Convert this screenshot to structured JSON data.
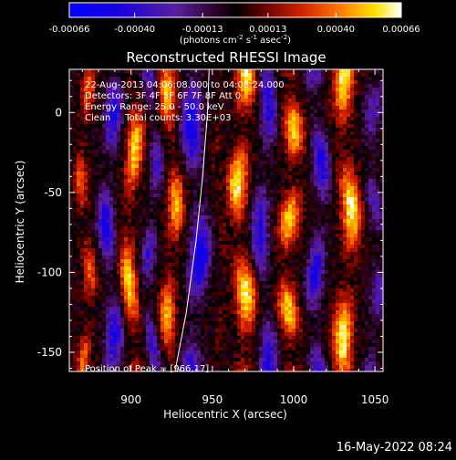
{
  "colorbar": {
    "tick_labels": [
      "-0.00066",
      "-0.00040",
      "-0.00013",
      "0.00013",
      "0.00040",
      "0.00066"
    ],
    "tick_values": [
      -0.00066,
      -0.0004,
      -0.00013,
      0.00013,
      0.0004,
      0.00066
    ],
    "range": [
      -0.00066,
      0.00066
    ],
    "unit_main": "(photons cm",
    "unit_sup1": "-2",
    "unit_mid": " s",
    "unit_sup2": "-1",
    "unit_mid2": " asec",
    "unit_sup3": "-2",
    "unit_close": ")"
  },
  "footer": {
    "timestamp": "16-May-2022 08:24"
  },
  "colors": {
    "background": "#000000",
    "limb": "#ffffff",
    "text": "#ffffff"
  },
  "chart_data": {
    "type": "heatmap",
    "title": "Reconstructed RHESSI Image",
    "xlabel": "Heliocentric X (arcsec)",
    "ylabel": "Heliocentric Y (arcsec)",
    "xlim": [
      862,
      1055
    ],
    "ylim": [
      -162,
      27
    ],
    "xticks": [
      900,
      950,
      1000,
      1050
    ],
    "yticks": [
      0,
      -50,
      -100,
      -150
    ],
    "xtick_labels": [
      "900",
      "950",
      "1000",
      "1050"
    ],
    "ytick_labels": [
      "0",
      "-50",
      "-100",
      "-150"
    ],
    "colormap": "blue-purple-red-yellow-white",
    "annotations": {
      "time": "22-Aug-2013 04:06:08.000 to 04:08:24.000",
      "detectors": "Detectors: 3F 4F 5F 6F 7F 8F Att 0",
      "energy": "Energy Range: 25.0 - 50.0 keV",
      "method": "Clean     Total counts: 3.30E+03",
      "peak": "Position of Peak = [966,17]"
    },
    "stripes": [
      {
        "x": 872,
        "amp": 0.55,
        "width": 4
      },
      {
        "x": 887,
        "amp": -0.75,
        "width": 5
      },
      {
        "x": 900,
        "amp": 0.85,
        "width": 5
      },
      {
        "x": 913,
        "amp": -0.55,
        "width": 4
      },
      {
        "x": 925,
        "amp": 0.75,
        "width": 5
      },
      {
        "x": 940,
        "amp": -0.85,
        "width": 6
      },
      {
        "x": 955,
        "amp": 0.15,
        "width": 3
      },
      {
        "x": 968,
        "amp": 0.95,
        "width": 6
      },
      {
        "x": 982,
        "amp": -0.7,
        "width": 5
      },
      {
        "x": 998,
        "amp": 0.85,
        "width": 6
      },
      {
        "x": 1015,
        "amp": -0.75,
        "width": 5
      },
      {
        "x": 1033,
        "amp": 0.95,
        "width": 6
      },
      {
        "x": 1050,
        "amp": -0.45,
        "width": 5
      }
    ],
    "limb": {
      "label": "solar limb",
      "points": [
        [
          927,
          -162
        ],
        [
          934,
          -125
        ],
        [
          940,
          -80
        ],
        [
          944,
          -40
        ],
        [
          947,
          0
        ],
        [
          948,
          27
        ]
      ]
    }
  }
}
